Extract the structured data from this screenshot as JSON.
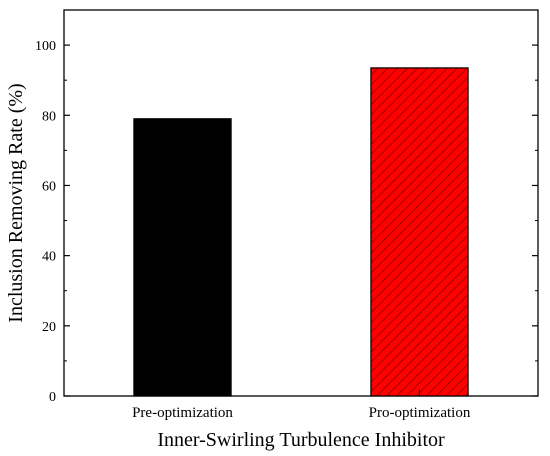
{
  "chart_data": {
    "type": "bar",
    "categories": [
      "Pre-optimization",
      "Pro-optimization"
    ],
    "values": [
      79,
      93.5
    ],
    "xlabel": "Inner-Swirling Turbulence Inhibitor",
    "ylabel": "Inclusion Removing Rate (%)",
    "ylim": [
      0,
      110
    ],
    "yticks": [
      "0",
      "20",
      "40",
      "60",
      "80",
      "100"
    ],
    "grid": false,
    "bar_fills": [
      "#000000",
      "#ff0000"
    ],
    "bar_patterns": [
      "solid",
      "diagonal-hatch"
    ]
  }
}
